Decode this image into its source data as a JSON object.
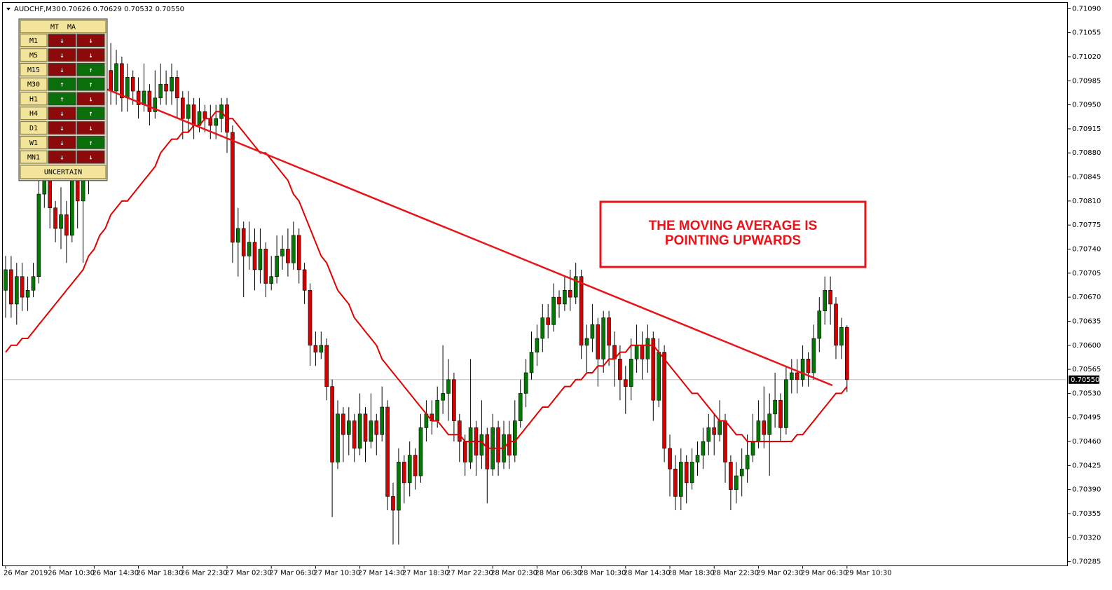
{
  "header": {
    "symbol": "AUDCHF,M30",
    "prices": "0.70626 0.70629 0.70532 0.70550"
  },
  "panel": {
    "title": "MT  MA",
    "rows": [
      {
        "label": "M1",
        "arrows": [
          "↓",
          "↓"
        ]
      },
      {
        "label": "M5",
        "arrows": [
          "↓",
          "↓"
        ]
      },
      {
        "label": "M15",
        "arrows": [
          "↓",
          "↑"
        ]
      },
      {
        "label": "M30",
        "arrows": [
          "↑",
          "↑"
        ]
      },
      {
        "label": "H1",
        "arrows": [
          "↑",
          "↓"
        ]
      },
      {
        "label": "H4",
        "arrows": [
          "↓",
          "↑"
        ]
      },
      {
        "label": "D1",
        "arrows": [
          "↓",
          "↓"
        ]
      },
      {
        "label": "W1",
        "arrows": [
          "↓",
          "↑"
        ]
      },
      {
        "label": "MN1",
        "arrows": [
          "↓",
          "↓"
        ]
      }
    ],
    "status": "UNCERTAIN"
  },
  "annotation": {
    "lines": [
      "THE MOVING AVERAGE IS",
      "POINTING UPWARDS"
    ]
  },
  "chart_data": {
    "type": "candlestick",
    "ylim": [
      0.70279,
      0.71099
    ],
    "yticks": [
      {
        "value": 0.7109,
        "label": "0.71090"
      },
      0.71055,
      {
        "value": 0.7102,
        "label": "0.71020"
      },
      0.70985,
      {
        "value": 0.7095,
        "label": "0.70950"
      },
      0.70915,
      {
        "value": 0.7088,
        "label": "0.70880"
      },
      0.70845,
      {
        "value": 0.7081,
        "label": "0.70810"
      },
      0.70775,
      {
        "value": 0.7074,
        "label": "0.70740"
      },
      0.70705,
      {
        "value": 0.7067,
        "label": "0.70670"
      },
      0.70635,
      {
        "value": 0.706,
        "label": "0.70600"
      },
      0.70565,
      {
        "value": 0.7053,
        "label": "0.70530"
      },
      0.70495,
      {
        "value": 0.7046,
        "label": "0.70460"
      },
      0.70425,
      {
        "value": 0.7039,
        "label": "0.70390"
      },
      0.70355,
      {
        "value": 0.7032,
        "label": "0.70320"
      },
      0.70285
    ],
    "current_price": {
      "value": 0.7055,
      "label": "0.70550"
    },
    "bull_color": "#007a00",
    "bear_color": "#d40000",
    "categories": [
      "26 Mar 2019",
      null,
      null,
      null,
      null,
      null,
      null,
      null,
      "26 Mar 10:30",
      null,
      null,
      null,
      null,
      null,
      null,
      null,
      "26 Mar 14:30",
      null,
      null,
      null,
      null,
      null,
      null,
      null,
      "26 Mar 18:30",
      null,
      null,
      null,
      null,
      null,
      null,
      null,
      "26 Mar 22:30",
      null,
      null,
      null,
      null,
      null,
      null,
      null,
      "27 Mar 02:30",
      null,
      null,
      null,
      null,
      null,
      null,
      null,
      "27 Mar 06:30",
      null,
      null,
      null,
      null,
      null,
      null,
      null,
      "27 Mar 10:30",
      null,
      null,
      null,
      null,
      null,
      null,
      null,
      "27 Mar 14:30",
      null,
      null,
      null,
      null,
      null,
      null,
      null,
      "27 Mar 18:30",
      null,
      null,
      null,
      null,
      null,
      null,
      null,
      "27 Mar 22:30",
      null,
      null,
      null,
      null,
      null,
      null,
      null,
      "28 Mar 02:30",
      null,
      null,
      null,
      null,
      null,
      null,
      null,
      "28 Mar 06:30",
      null,
      null,
      null,
      null,
      null,
      null,
      null,
      "28 Mar 10:30",
      null,
      null,
      null,
      null,
      null,
      null,
      null,
      "28 Mar 14:30",
      null,
      null,
      null,
      null,
      null,
      null,
      null,
      "28 Mar 18:30",
      null,
      null,
      null,
      null,
      null,
      null,
      null,
      "28 Mar 22:30",
      null,
      null,
      null,
      null,
      null,
      null,
      null,
      "29 Mar 02:30",
      null,
      null,
      null,
      null,
      null,
      null,
      null,
      "29 Mar 06:30",
      null,
      null,
      null,
      null,
      null,
      null,
      null,
      "29 Mar 10:30"
    ],
    "open": [
      0.7068,
      0.7071,
      0.7066,
      0.707,
      0.7067,
      0.7068,
      0.707,
      0.7082,
      0.7084,
      0.708,
      0.7077,
      0.7079,
      0.7076,
      0.7088,
      0.7081,
      0.7084,
      0.7088,
      0.7098,
      0.7094,
      0.71,
      0.7097,
      0.7101,
      0.7096,
      0.7099,
      0.7097,
      0.7095,
      0.7097,
      0.7094,
      0.7096,
      0.7098,
      0.7097,
      0.7099,
      0.7096,
      0.7093,
      0.7095,
      0.7092,
      0.7094,
      0.7093,
      0.7092,
      0.7093,
      0.7095,
      0.7091,
      0.7075,
      0.7077,
      0.7073,
      0.7075,
      0.7071,
      0.7074,
      0.7069,
      0.707,
      0.7073,
      0.7074,
      0.7072,
      0.7076,
      0.7071,
      0.7068,
      0.706,
      0.7059,
      0.706,
      0.7054,
      0.7043,
      0.705,
      0.7047,
      0.7049,
      0.7045,
      0.705,
      0.7046,
      0.7049,
      0.7047,
      0.7051,
      0.7038,
      0.7036,
      0.7043,
      0.704,
      0.7044,
      0.7041,
      0.7048,
      0.705,
      0.7049,
      0.7052,
      0.7053,
      0.7055,
      0.7049,
      0.7046,
      0.7043,
      0.7048,
      0.7044,
      0.7047,
      0.7042,
      0.7048,
      0.7043,
      0.7047,
      0.7044,
      0.7049,
      0.7053,
      0.7056,
      0.7059,
      0.7061,
      0.7064,
      0.7063,
      0.7067,
      0.7066,
      0.7068,
      0.7067,
      0.707,
      0.706,
      0.7061,
      0.7063,
      0.7058,
      0.7064,
      0.706,
      0.7058,
      0.7055,
      0.7054,
      0.7058,
      0.706,
      0.7058,
      0.7061,
      0.7052,
      0.7059,
      0.7045,
      0.7042,
      0.7038,
      0.7043,
      0.704,
      0.7043,
      0.7044,
      0.7046,
      0.7048,
      0.7047,
      0.7049,
      0.7043,
      0.7039,
      0.7041,
      0.7042,
      0.7044,
      0.7046,
      0.7049,
      0.7047,
      0.705,
      0.7052,
      0.7048,
      0.7055,
      0.7056,
      0.7055,
      0.7058,
      0.7056,
      0.7061,
      0.7065,
      0.7068,
      0.7066,
      0.706,
      0.70626
    ],
    "high": [
      0.7073,
      0.7073,
      0.7072,
      0.7072,
      0.707,
      0.7072,
      0.7085,
      0.7086,
      0.7086,
      0.7081,
      0.7083,
      0.7081,
      0.7092,
      0.7089,
      0.7087,
      0.709,
      0.7101,
      0.7104,
      0.7105,
      0.7104,
      0.7103,
      0.7102,
      0.7101,
      0.71,
      0.7099,
      0.7101,
      0.7098,
      0.71,
      0.7101,
      0.71,
      0.7101,
      0.71,
      0.7097,
      0.7097,
      0.7096,
      0.7096,
      0.7095,
      0.7095,
      0.7095,
      0.7096,
      0.7096,
      0.7092,
      0.708,
      0.7078,
      0.7078,
      0.7077,
      0.7077,
      0.7075,
      0.7073,
      0.7076,
      0.7076,
      0.7077,
      0.7078,
      0.7077,
      0.7072,
      0.7069,
      0.7062,
      0.7062,
      0.7061,
      0.7055,
      0.7052,
      0.7051,
      0.7051,
      0.705,
      0.7053,
      0.7051,
      0.7053,
      0.705,
      0.7054,
      0.7052,
      0.704,
      0.7045,
      0.7044,
      0.7046,
      0.7045,
      0.705,
      0.7052,
      0.7052,
      0.7054,
      0.706,
      0.7058,
      0.7056,
      0.705,
      0.7047,
      0.7058,
      0.7049,
      0.7052,
      0.7048,
      0.705,
      0.7049,
      0.7049,
      0.7049,
      0.7052,
      0.7055,
      0.7058,
      0.7062,
      0.7063,
      0.7066,
      0.7066,
      0.7069,
      0.7068,
      0.707,
      0.7071,
      0.7072,
      0.7071,
      0.7063,
      0.7066,
      0.7064,
      0.7065,
      0.7065,
      0.7062,
      0.706,
      0.7057,
      0.7061,
      0.7063,
      0.7062,
      0.7063,
      0.7062,
      0.7061,
      0.706,
      0.7047,
      0.7044,
      0.7045,
      0.7044,
      0.7045,
      0.7046,
      0.7048,
      0.705,
      0.705,
      0.7052,
      0.705,
      0.7044,
      0.7043,
      0.7045,
      0.7047,
      0.705,
      0.7052,
      0.7054,
      0.7053,
      0.7056,
      0.7053,
      0.7057,
      0.7058,
      0.7058,
      0.706,
      0.7059,
      0.7063,
      0.7067,
      0.707,
      0.707,
      0.7067,
      0.7064,
      0.70629
    ],
    "low": [
      0.7064,
      0.7064,
      0.7063,
      0.7065,
      0.7065,
      0.7067,
      0.7069,
      0.708,
      0.7077,
      0.7075,
      0.7074,
      0.7072,
      0.7075,
      0.7077,
      0.7072,
      0.7082,
      0.7087,
      0.709,
      0.7093,
      0.7095,
      0.7095,
      0.7094,
      0.7094,
      0.7095,
      0.7093,
      0.7094,
      0.7092,
      0.7093,
      0.7095,
      0.7095,
      0.7095,
      0.7093,
      0.709,
      0.7091,
      0.709,
      0.7091,
      0.7091,
      0.709,
      0.709,
      0.7091,
      0.7088,
      0.7072,
      0.707,
      0.7067,
      0.7071,
      0.7068,
      0.7069,
      0.7067,
      0.7068,
      0.7069,
      0.7071,
      0.707,
      0.7071,
      0.7069,
      0.7066,
      0.7057,
      0.7057,
      0.7058,
      0.7052,
      0.7035,
      0.7042,
      0.7043,
      0.7044,
      0.7043,
      0.7044,
      0.7043,
      0.7045,
      0.7044,
      0.7046,
      0.7036,
      0.7031,
      0.7031,
      0.7037,
      0.7038,
      0.7039,
      0.704,
      0.7046,
      0.7047,
      0.7048,
      0.705,
      0.7049,
      0.7046,
      0.7043,
      0.7041,
      0.7042,
      0.7041,
      0.7042,
      0.7037,
      0.7041,
      0.7041,
      0.7042,
      0.7042,
      0.7043,
      0.7048,
      0.7051,
      0.7055,
      0.7057,
      0.7059,
      0.7061,
      0.7062,
      0.7064,
      0.7065,
      0.7065,
      0.7066,
      0.7058,
      0.7056,
      0.7059,
      0.7054,
      0.7056,
      0.7057,
      0.7054,
      0.7052,
      0.705,
      0.7052,
      0.7056,
      0.7055,
      0.7056,
      0.7049,
      0.7051,
      0.7043,
      0.7038,
      0.7036,
      0.7036,
      0.7037,
      0.7039,
      0.7041,
      0.7042,
      0.7044,
      0.7044,
      0.7046,
      0.704,
      0.7036,
      0.7037,
      0.7038,
      0.704,
      0.7043,
      0.7045,
      0.7045,
      0.7041,
      0.7048,
      0.7046,
      0.7047,
      0.7053,
      0.7053,
      0.7054,
      0.7054,
      0.7055,
      0.7059,
      0.7063,
      0.7063,
      0.7058,
      0.7058,
      0.70532
    ],
    "close": [
      0.7071,
      0.7066,
      0.707,
      0.7067,
      0.7068,
      0.707,
      0.7082,
      0.7084,
      0.708,
      0.7077,
      0.7079,
      0.7076,
      0.7088,
      0.7081,
      0.7084,
      0.7088,
      0.7098,
      0.7094,
      0.71,
      0.7097,
      0.7101,
      0.7096,
      0.7099,
      0.7097,
      0.7095,
      0.7097,
      0.7094,
      0.7096,
      0.7098,
      0.7097,
      0.7099,
      0.7096,
      0.7093,
      0.7095,
      0.7092,
      0.7094,
      0.7093,
      0.7092,
      0.7093,
      0.7095,
      0.7091,
      0.7075,
      0.7077,
      0.7073,
      0.7075,
      0.7071,
      0.7074,
      0.7069,
      0.707,
      0.7073,
      0.7074,
      0.7072,
      0.7076,
      0.7071,
      0.7068,
      0.706,
      0.7059,
      0.706,
      0.7054,
      0.7043,
      0.705,
      0.7047,
      0.7049,
      0.7045,
      0.705,
      0.7046,
      0.7049,
      0.7047,
      0.7051,
      0.7038,
      0.7036,
      0.7043,
      0.704,
      0.7044,
      0.7041,
      0.7048,
      0.705,
      0.7049,
      0.7052,
      0.7053,
      0.7055,
      0.7049,
      0.7046,
      0.7043,
      0.7048,
      0.7044,
      0.7047,
      0.7042,
      0.7048,
      0.7043,
      0.7047,
      0.7044,
      0.7049,
      0.7053,
      0.7056,
      0.7059,
      0.7061,
      0.7064,
      0.7063,
      0.7067,
      0.7066,
      0.7068,
      0.7067,
      0.707,
      0.706,
      0.7061,
      0.7063,
      0.7058,
      0.7064,
      0.706,
      0.7058,
      0.7055,
      0.7054,
      0.7058,
      0.706,
      0.7058,
      0.7061,
      0.7052,
      0.7059,
      0.7045,
      0.7042,
      0.7038,
      0.7043,
      0.704,
      0.7043,
      0.7044,
      0.7046,
      0.7048,
      0.7047,
      0.7049,
      0.7043,
      0.7039,
      0.7041,
      0.7042,
      0.7044,
      0.7046,
      0.7049,
      0.7047,
      0.705,
      0.7052,
      0.7048,
      0.7055,
      0.7056,
      0.7055,
      0.7058,
      0.7056,
      0.7061,
      0.7065,
      0.7068,
      0.7066,
      0.706,
      0.70626,
      0.7055
    ],
    "moving_average": {
      "color": "#e00000",
      "values": [
        0.7059,
        0.706,
        0.706,
        0.7061,
        0.7061,
        0.7062,
        0.7063,
        0.7064,
        0.7065,
        0.7066,
        0.7067,
        0.7068,
        0.7069,
        0.707,
        0.7071,
        0.7073,
        0.7074,
        0.7076,
        0.7077,
        0.7079,
        0.708,
        0.7081,
        0.7081,
        0.7082,
        0.7083,
        0.7084,
        0.7085,
        0.7086,
        0.7088,
        0.7089,
        0.709,
        0.709,
        0.7091,
        0.7091,
        0.7092,
        0.7092,
        0.7093,
        0.7093,
        0.7094,
        0.7094,
        0.7093,
        0.7093,
        0.7092,
        0.7091,
        0.709,
        0.7089,
        0.7088,
        0.7088,
        0.7087,
        0.7086,
        0.7085,
        0.7084,
        0.7082,
        0.7081,
        0.7079,
        0.7077,
        0.7075,
        0.7073,
        0.7072,
        0.707,
        0.7068,
        0.7067,
        0.7066,
        0.7064,
        0.7063,
        0.7062,
        0.7061,
        0.706,
        0.7058,
        0.7057,
        0.7056,
        0.7055,
        0.7054,
        0.7053,
        0.7052,
        0.7051,
        0.705,
        0.7049,
        0.7049,
        0.7048,
        0.7047,
        0.7047,
        0.7047,
        0.7046,
        0.7046,
        0.7046,
        0.7046,
        0.7045,
        0.7045,
        0.7045,
        0.7045,
        0.7046,
        0.7046,
        0.7047,
        0.7048,
        0.7049,
        0.705,
        0.7051,
        0.7051,
        0.7052,
        0.7053,
        0.7054,
        0.7054,
        0.7055,
        0.7055,
        0.7056,
        0.7056,
        0.7057,
        0.7057,
        0.7058,
        0.7058,
        0.7059,
        0.7059,
        0.706,
        0.706,
        0.706,
        0.706,
        0.706,
        0.7059,
        0.7058,
        0.7057,
        0.7056,
        0.7055,
        0.7054,
        0.7053,
        0.7053,
        0.7052,
        0.7051,
        0.705,
        0.7049,
        0.7049,
        0.7048,
        0.7047,
        0.7047,
        0.7046,
        0.7046,
        0.7046,
        0.7046,
        0.7046,
        0.7046,
        0.7046,
        0.7046,
        0.7046,
        0.7047,
        0.7047,
        0.7048,
        0.7049,
        0.705,
        0.7051,
        0.7052,
        0.7053,
        0.7053,
        0.7054
      ]
    }
  }
}
